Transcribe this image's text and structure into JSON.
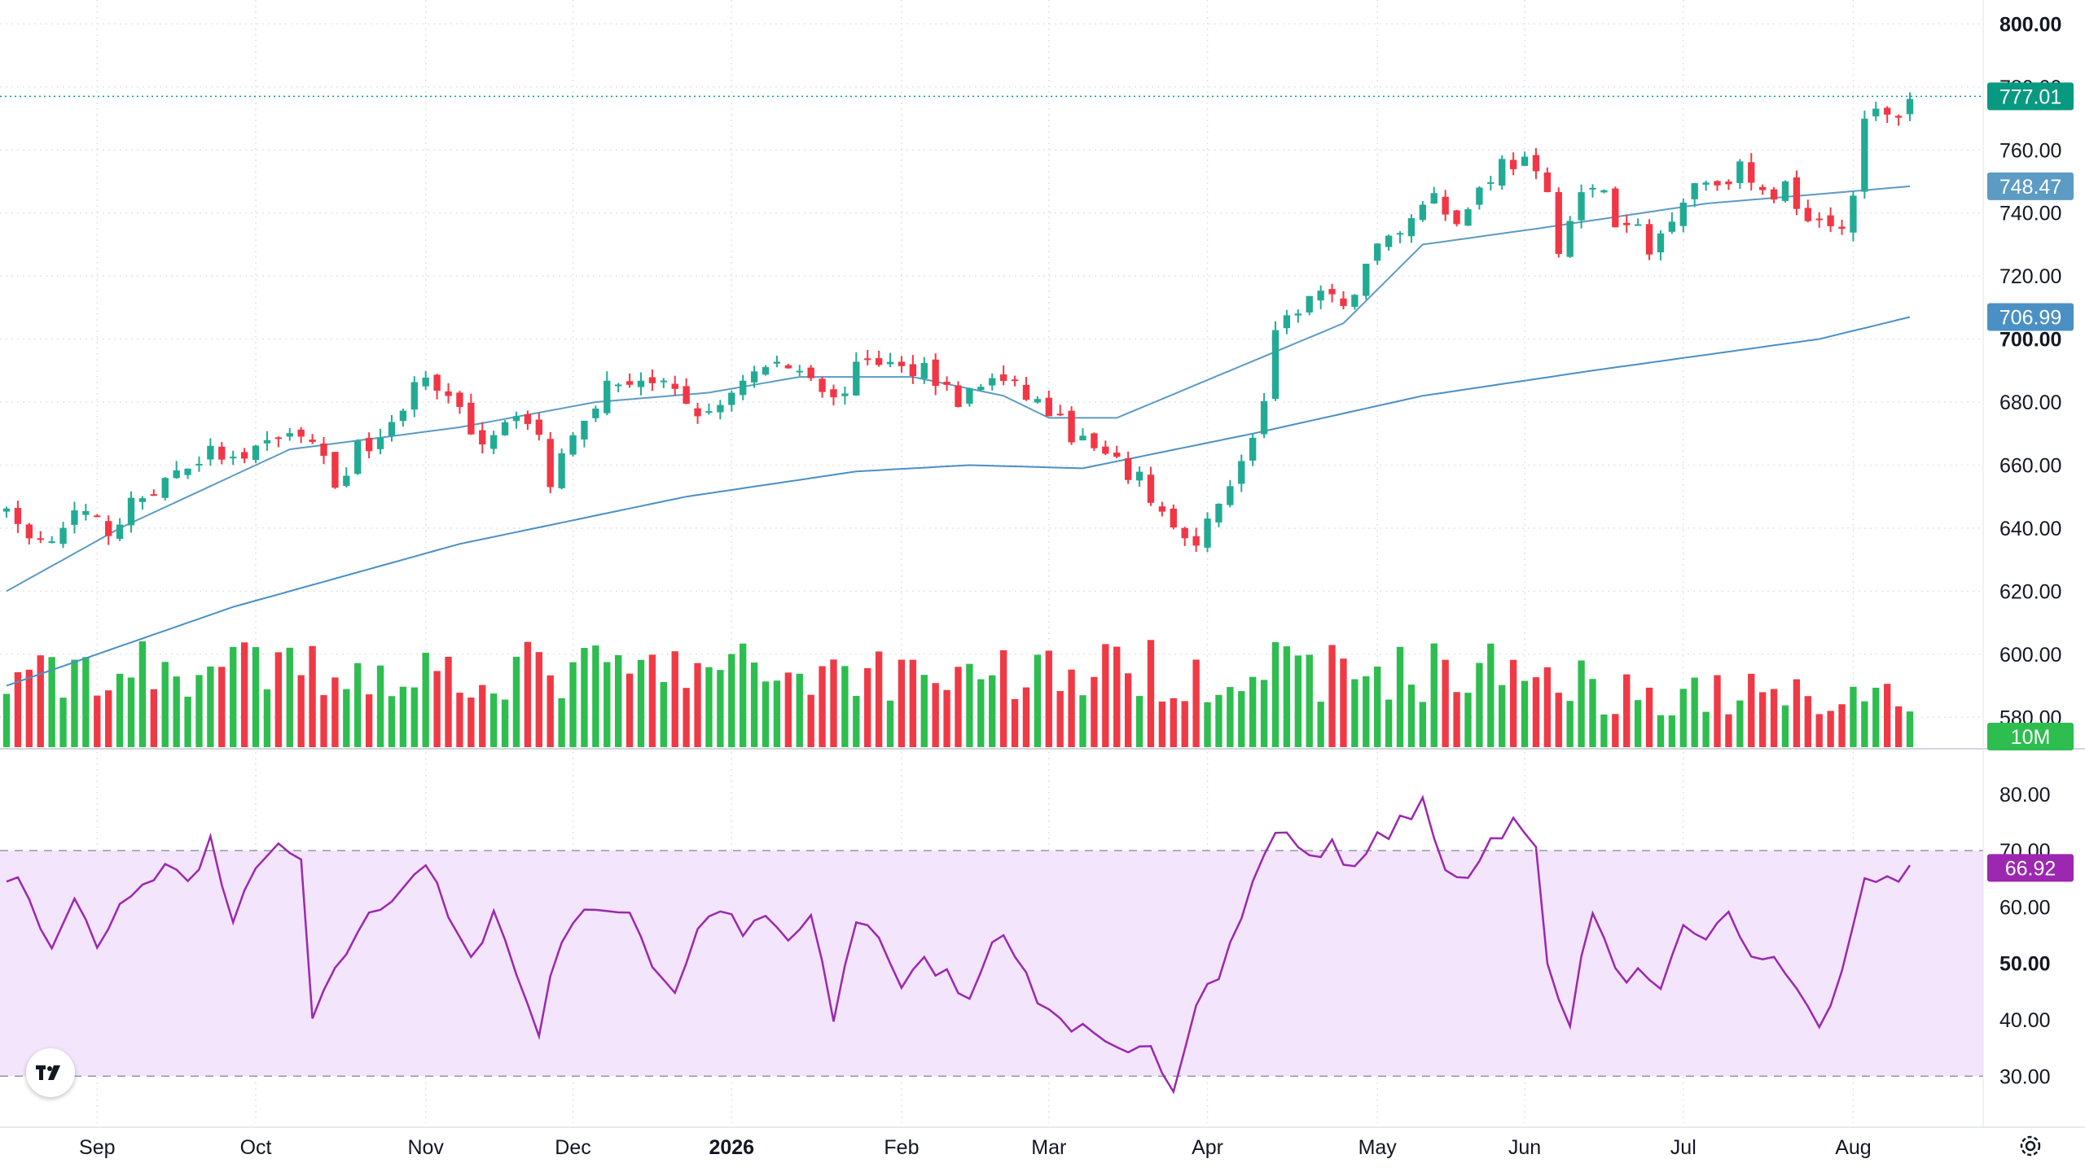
{
  "chart_data": [
    {
      "type": "candlestick",
      "title": "",
      "price_axis": {
        "range": [
          570,
          805
        ],
        "ticks": [
          "580.00",
          "600.00",
          "620.00",
          "640.00",
          "660.00",
          "680.00",
          "700.00",
          "720.00",
          "740.00",
          "760.00",
          "780.00",
          "800.00"
        ],
        "major_ticks": [
          "700.00",
          "800.00"
        ]
      },
      "last_price": {
        "value": 777.01,
        "label": "777.01",
        "color": "#089981"
      },
      "moving_averages": [
        {
          "label": "748.47",
          "color": "#5b9bc4",
          "anchors": [
            [
              0,
              620
            ],
            [
              10,
              640
            ],
            [
              25,
              665
            ],
            [
              40,
              672
            ],
            [
              52,
              680
            ],
            [
              62,
              683
            ],
            [
              70,
              688
            ],
            [
              80,
              688
            ],
            [
              88,
              682
            ],
            [
              92,
              675
            ],
            [
              98,
              675
            ],
            [
              108,
              690
            ],
            [
              118,
              705
            ],
            [
              125,
              730
            ],
            [
              135,
              735
            ],
            [
              150,
              743
            ],
            [
              160,
              746
            ],
            [
              168,
              748.47
            ]
          ]
        },
        {
          "label": "706.99",
          "color": "#4a90c4",
          "anchors": [
            [
              0,
              590
            ],
            [
              20,
              615
            ],
            [
              40,
              635
            ],
            [
              60,
              650
            ],
            [
              75,
              658
            ],
            [
              85,
              660
            ],
            [
              95,
              659
            ],
            [
              110,
              670
            ],
            [
              125,
              682
            ],
            [
              140,
              690
            ],
            [
              160,
              700
            ],
            [
              168,
              706.99
            ]
          ]
        }
      ],
      "volume": {
        "last_label": "10M",
        "max_bar_height_fraction": 1.0
      },
      "x_axis": {
        "labels": [
          {
            "text": "Sep",
            "index": 8
          },
          {
            "text": "Oct",
            "index": 22
          },
          {
            "text": "Nov",
            "index": 37
          },
          {
            "text": "Dec",
            "index": 50
          },
          {
            "text": "2026",
            "index": 64,
            "major": true
          },
          {
            "text": "Feb",
            "index": 79
          },
          {
            "text": "Mar",
            "index": 92
          },
          {
            "text": "Apr",
            "index": 106
          },
          {
            "text": "May",
            "index": 121
          },
          {
            "text": "Jun",
            "index": 134
          },
          {
            "text": "Jul",
            "index": 148
          },
          {
            "text": "Aug",
            "index": 163
          }
        ]
      },
      "price_anchors": [
        [
          0,
          644
        ],
        [
          3,
          636
        ],
        [
          6,
          644
        ],
        [
          9,
          640
        ],
        [
          12,
          650
        ],
        [
          15,
          658
        ],
        [
          18,
          664
        ],
        [
          21,
          660
        ],
        [
          24,
          670
        ],
        [
          27,
          668
        ],
        [
          29,
          654
        ],
        [
          31,
          665
        ],
        [
          34,
          672
        ],
        [
          36,
          688
        ],
        [
          39,
          680
        ],
        [
          42,
          668
        ],
        [
          45,
          678
        ],
        [
          47,
          668
        ],
        [
          48,
          655
        ],
        [
          50,
          672
        ],
        [
          53,
          685
        ],
        [
          56,
          688
        ],
        [
          59,
          682
        ],
        [
          62,
          675
        ],
        [
          65,
          688
        ],
        [
          68,
          692
        ],
        [
          71,
          690
        ],
        [
          73,
          680
        ],
        [
          76,
          695
        ],
        [
          79,
          690
        ],
        [
          81,
          692
        ],
        [
          84,
          680
        ],
        [
          87,
          688
        ],
        [
          91,
          680
        ],
        [
          94,
          670
        ],
        [
          97,
          662
        ],
        [
          100,
          655
        ],
        [
          103,
          640
        ],
        [
          105,
          632
        ],
        [
          107,
          650
        ],
        [
          109,
          660
        ],
        [
          111,
          680
        ],
        [
          112,
          700
        ],
        [
          114,
          710
        ],
        [
          116,
          715
        ],
        [
          118,
          708
        ],
        [
          120,
          725
        ],
        [
          122,
          732
        ],
        [
          124,
          738
        ],
        [
          126,
          748
        ],
        [
          128,
          736
        ],
        [
          130,
          748
        ],
        [
          132,
          756
        ],
        [
          134,
          756
        ],
        [
          136,
          745
        ],
        [
          137,
          730
        ],
        [
          139,
          745
        ],
        [
          141,
          748
        ],
        [
          142,
          735
        ],
        [
          144,
          735
        ],
        [
          145,
          727
        ],
        [
          147,
          740
        ],
        [
          149,
          750
        ],
        [
          151,
          750
        ],
        [
          153,
          754
        ],
        [
          155,
          745
        ],
        [
          157,
          748
        ],
        [
          159,
          740
        ],
        [
          161,
          738
        ],
        [
          162,
          735
        ],
        [
          163,
          748
        ],
        [
          164,
          768
        ],
        [
          165,
          772
        ],
        [
          166,
          770
        ],
        [
          167,
          772
        ],
        [
          168,
          777
        ]
      ]
    },
    {
      "type": "line",
      "title": "",
      "series": [
        {
          "label": "66.92",
          "color": "#9c27b0"
        }
      ],
      "y_axis": {
        "range": [
          26,
          83
        ],
        "ticks": [
          "30.00",
          "40.00",
          "50.00",
          "60.00",
          "70.00",
          "80.00"
        ],
        "major_ticks": [
          "50.00"
        ]
      },
      "bands": {
        "lower": 30,
        "upper": 70,
        "fill": "#f3e5fc"
      },
      "anchors": [
        [
          0,
          66
        ],
        [
          2,
          62
        ],
        [
          4,
          52
        ],
        [
          6,
          62
        ],
        [
          8,
          52
        ],
        [
          10,
          60
        ],
        [
          12,
          63
        ],
        [
          14,
          68
        ],
        [
          16,
          64
        ],
        [
          18,
          72
        ],
        [
          20,
          56
        ],
        [
          22,
          68
        ],
        [
          24,
          70
        ],
        [
          26,
          68
        ],
        [
          27,
          40
        ],
        [
          29,
          48
        ],
        [
          31,
          56
        ],
        [
          33,
          60
        ],
        [
          35,
          64
        ],
        [
          37,
          68
        ],
        [
          39,
          58
        ],
        [
          41,
          50
        ],
        [
          43,
          60
        ],
        [
          45,
          48
        ],
        [
          47,
          38
        ],
        [
          49,
          55
        ],
        [
          51,
          60
        ],
        [
          53,
          58
        ],
        [
          55,
          60
        ],
        [
          57,
          50
        ],
        [
          59,
          45
        ],
        [
          61,
          56
        ],
        [
          63,
          60
        ],
        [
          65,
          55
        ],
        [
          67,
          58
        ],
        [
          69,
          54
        ],
        [
          71,
          58
        ],
        [
          73,
          40
        ],
        [
          75,
          58
        ],
        [
          77,
          55
        ],
        [
          79,
          46
        ],
        [
          81,
          50
        ],
        [
          83,
          48
        ],
        [
          85,
          44
        ],
        [
          87,
          55
        ],
        [
          89,
          52
        ],
        [
          91,
          44
        ],
        [
          93,
          40
        ],
        [
          95,
          38
        ],
        [
          97,
          35
        ],
        [
          99,
          33
        ],
        [
          101,
          36
        ],
        [
          103,
          28
        ],
        [
          105,
          44
        ],
        [
          107,
          48
        ],
        [
          109,
          58
        ],
        [
          111,
          70
        ],
        [
          113,
          74
        ],
        [
          115,
          68
        ],
        [
          117,
          72
        ],
        [
          119,
          66
        ],
        [
          121,
          72
        ],
        [
          123,
          75
        ],
        [
          125,
          78
        ],
        [
          127,
          66
        ],
        [
          129,
          66
        ],
        [
          131,
          72
        ],
        [
          133,
          75
        ],
        [
          135,
          70
        ],
        [
          136,
          50
        ],
        [
          138,
          40
        ],
        [
          140,
          60
        ],
        [
          142,
          48
        ],
        [
          144,
          48
        ],
        [
          146,
          44
        ],
        [
          148,
          56
        ],
        [
          150,
          55
        ],
        [
          152,
          58
        ],
        [
          154,
          52
        ],
        [
          156,
          50
        ],
        [
          158,
          46
        ],
        [
          160,
          38
        ],
        [
          162,
          48
        ],
        [
          164,
          66
        ],
        [
          166,
          64
        ],
        [
          167,
          63
        ],
        [
          168,
          67
        ]
      ]
    }
  ]
}
